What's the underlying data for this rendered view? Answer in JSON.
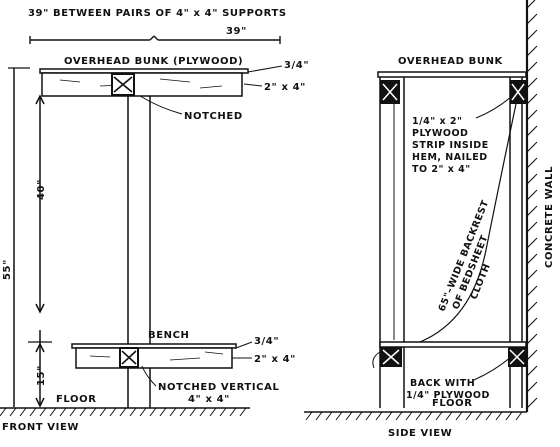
{
  "front_view": {
    "header": "39\"  BETWEEN  PAIRS  OF  4\" x 4\"  SUPPORTS",
    "span_39": "39\"",
    "bunk_label": "OVERHEAD  BUNK  (PLYWOOD)",
    "ply_top": "3/4\"",
    "stud_top": "2\" x 4\"",
    "notched": "NOTCHED",
    "dim_40": "40\"",
    "dim_55": "55\"",
    "dim_15": "15\"",
    "bench": "BENCH",
    "ply_bench": "3/4\"",
    "stud_bench": "2\" x 4\"",
    "notched_vertical_1": "NOTCHED  VERTICAL",
    "notched_vertical_2": "4\" x 4\"",
    "floor": "FLOOR",
    "caption": "FRONT  VIEW"
  },
  "side_view": {
    "bunk_label": "OVERHEAD  BUNK",
    "strip_1": "1/4\" x 2\"",
    "strip_2": "PLYWOOD",
    "strip_3": "STRIP INSIDE",
    "strip_4": "HEM, NAILED",
    "strip_5": "TO 2\" x 4\"",
    "backrest_1": "65\"–WIDE BACKREST",
    "backrest_2": "OF BEDSHEET",
    "backrest_3": "CLOTH",
    "wall": "CONCRETE  WALL",
    "back_1": "BACK WITH",
    "back_2": "1/4\" PLYWOOD",
    "floor": "FLOOR",
    "caption": "SIDE    VIEW"
  }
}
